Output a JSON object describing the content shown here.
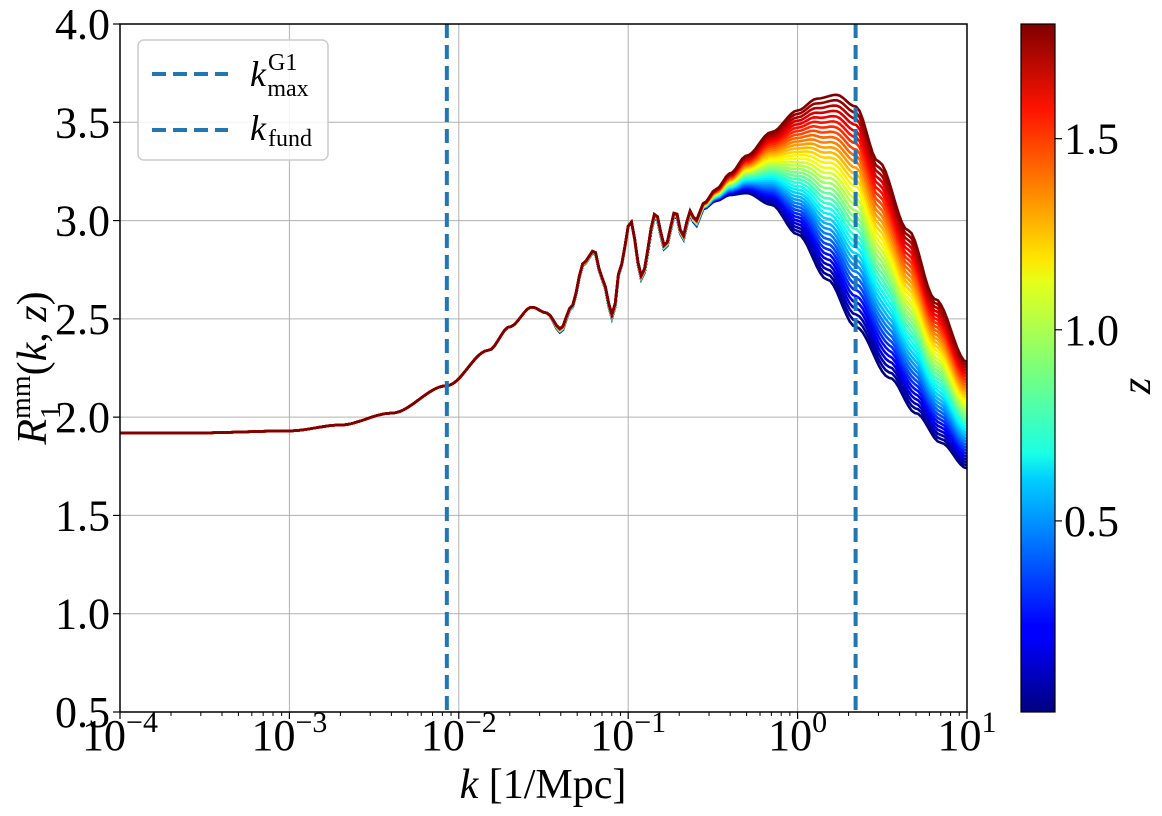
{
  "chart_data": {
    "type": "line",
    "x_scale": "log",
    "xlim": [
      0.0001,
      10
    ],
    "ylim": [
      0.5,
      4.0
    ],
    "grid": true,
    "xlabel": "k [1/Mpc]",
    "ylabel": "R_1^mm(k, z)",
    "x_tick_labels": [
      {
        "base": "10",
        "exp": "−4"
      },
      {
        "base": "10",
        "exp": "−3"
      },
      {
        "base": "10",
        "exp": "−2"
      },
      {
        "base": "10",
        "exp": "−1"
      },
      {
        "base": "10",
        "exp": "0"
      },
      {
        "base": "10",
        "exp": "1"
      }
    ],
    "y_ticks": [
      0.5,
      1.0,
      1.5,
      2.0,
      2.5,
      3.0,
      3.5,
      4.0
    ],
    "y_tick_labels": [
      "0.5",
      "1.0",
      "1.5",
      "2.0",
      "2.5",
      "3.0",
      "3.5",
      "4.0"
    ],
    "legend_location": "top-left",
    "legend": [
      {
        "label_base": "k",
        "label_sup": "G1",
        "label_sub": "max",
        "style": "dashed",
        "color": "#1f77b4"
      },
      {
        "label_base": "k",
        "label_sub": "fund",
        "style": "dashed",
        "color": "#1f77b4"
      }
    ],
    "vlines": [
      {
        "name": "k_max^G1",
        "x": 0.0085,
        "color": "#1f77b4",
        "style": "dashed"
      },
      {
        "name": "k_fund",
        "x": 2.2,
        "color": "#1f77b4",
        "style": "dashed"
      }
    ],
    "colorbar": {
      "label": "z",
      "colormap": "jet",
      "range": [
        0.0,
        1.8
      ],
      "ticks": [
        0.5,
        1.0,
        1.5
      ],
      "tick_labels": [
        "0.5",
        "1.0",
        "1.5"
      ]
    },
    "series_description": "family of curves colored by redshift z",
    "curve_low_z": {
      "z": 0.0,
      "x": [
        0.0001,
        0.0003,
        0.001,
        0.002,
        0.004,
        0.0085,
        0.015,
        0.02,
        0.027,
        0.033,
        0.04,
        0.046,
        0.055,
        0.063,
        0.07,
        0.081,
        0.09,
        0.103,
        0.12,
        0.145,
        0.165,
        0.19,
        0.21,
        0.232,
        0.25,
        0.28,
        0.33,
        0.4,
        0.5,
        0.7,
        1.0,
        1.5,
        2.2,
        3.5,
        5.0,
        7.0,
        10.0
      ],
      "y": [
        1.92,
        1.92,
        1.93,
        1.96,
        2.02,
        2.16,
        2.34,
        2.46,
        2.56,
        2.53,
        2.43,
        2.55,
        2.78,
        2.84,
        2.7,
        2.5,
        2.76,
        3.0,
        2.7,
        3.02,
        2.85,
        3.03,
        2.9,
        3.03,
        2.97,
        3.06,
        3.1,
        3.13,
        3.14,
        3.08,
        2.93,
        2.7,
        2.46,
        2.2,
        2.02,
        1.87,
        1.74
      ]
    },
    "curve_high_z": {
      "z": 1.8,
      "x": [
        0.0001,
        0.0003,
        0.001,
        0.002,
        0.004,
        0.0085,
        0.015,
        0.02,
        0.027,
        0.033,
        0.04,
        0.046,
        0.055,
        0.063,
        0.07,
        0.081,
        0.09,
        0.103,
        0.12,
        0.145,
        0.165,
        0.19,
        0.21,
        0.232,
        0.25,
        0.28,
        0.33,
        0.4,
        0.5,
        0.7,
        1.0,
        1.3,
        1.7,
        2.2,
        3.0,
        4.5,
        6.5,
        10.0
      ],
      "y": [
        1.92,
        1.92,
        1.93,
        1.96,
        2.02,
        2.16,
        2.34,
        2.46,
        2.56,
        2.53,
        2.45,
        2.56,
        2.79,
        2.85,
        2.71,
        2.52,
        2.77,
        3.0,
        2.72,
        3.04,
        2.87,
        3.05,
        2.92,
        3.05,
        3.0,
        3.09,
        3.16,
        3.24,
        3.33,
        3.45,
        3.56,
        3.62,
        3.64,
        3.58,
        3.3,
        2.95,
        2.6,
        2.28
      ]
    }
  }
}
